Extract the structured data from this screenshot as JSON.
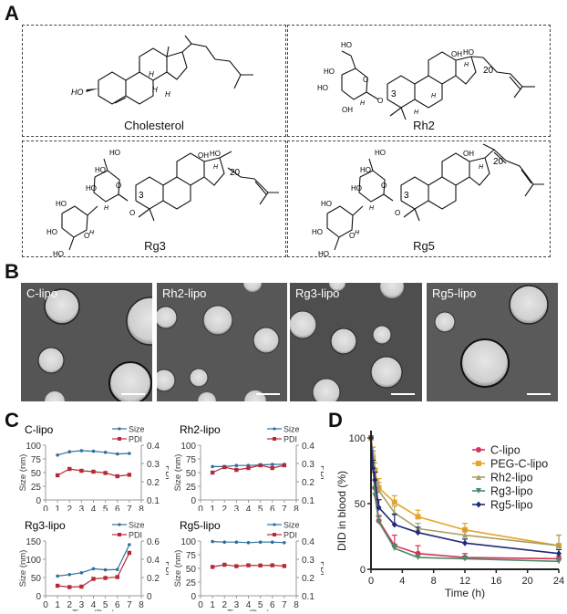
{
  "panels": {
    "A": {
      "label": "A",
      "molecules": [
        {
          "name": "Cholesterol",
          "labels": [
            "HO",
            "H",
            "H",
            "H"
          ]
        },
        {
          "name": "Rh2",
          "labels": [
            "HO",
            "HO",
            "HO",
            "OH",
            "O",
            "O",
            "H",
            "3",
            "OH",
            "HO",
            "20",
            "H",
            "H",
            "H"
          ]
        },
        {
          "name": "Rg3",
          "labels": [
            "HO",
            "HO",
            "HO",
            "HO",
            "HO",
            "HO",
            "O",
            "O",
            "O",
            "H",
            "H",
            "3",
            "OH",
            "HO",
            "20",
            "H"
          ]
        },
        {
          "name": "Rg5",
          "labels": [
            "HO",
            "HO",
            "HO",
            "HO",
            "HO",
            "HO",
            "O",
            "O",
            "O",
            "H",
            "H",
            "3",
            "OH",
            "20",
            "H"
          ]
        }
      ]
    },
    "B": {
      "label": "B",
      "images": [
        {
          "label": "C-lipo"
        },
        {
          "label": "Rh2-lipo"
        },
        {
          "label": "Rg3-lipo"
        },
        {
          "label": "Rg5-lipo"
        }
      ]
    },
    "C": {
      "label": "C"
    },
    "D": {
      "label": "D"
    }
  },
  "chart_data": [
    {
      "type": "line",
      "panel": "C",
      "title": "C-lipo",
      "xlabel": "Time (Day)",
      "ylabel": "Size (nm)",
      "y2label": "PDI",
      "x": [
        1,
        2,
        3,
        4,
        5,
        6,
        7
      ],
      "xticks": [
        "0",
        "1",
        "2",
        "3",
        "4",
        "5",
        "6",
        "7",
        "8"
      ],
      "yticks": [
        "0",
        "25",
        "50",
        "75",
        "100"
      ],
      "y2ticks": [
        "0.1",
        "0.2",
        "0.3",
        "0.4"
      ],
      "ylim": [
        0,
        100
      ],
      "y2lim": [
        0.1,
        0.4
      ],
      "series": [
        {
          "name": "Size",
          "axis": "left",
          "color": "#2e6f9e",
          "values": [
            82,
            88,
            90,
            89,
            87,
            84,
            85
          ]
        },
        {
          "name": "PDI",
          "axis": "right",
          "color": "#b52a35",
          "values": [
            0.235,
            0.27,
            0.26,
            0.255,
            0.248,
            0.23,
            0.238
          ]
        }
      ],
      "legend": [
        "Size",
        "PDI"
      ]
    },
    {
      "type": "line",
      "panel": "C",
      "title": "Rh2-lipo",
      "xlabel": "Time (Day)",
      "ylabel": "Size (nm)",
      "y2label": "PDI",
      "x": [
        1,
        2,
        3,
        4,
        5,
        6,
        7
      ],
      "xticks": [
        "0",
        "1",
        "2",
        "3",
        "4",
        "5",
        "6",
        "7",
        "8"
      ],
      "yticks": [
        "0",
        "25",
        "50",
        "75",
        "100"
      ],
      "y2ticks": [
        "0.1",
        "0.2",
        "0.3",
        "0.4"
      ],
      "ylim": [
        0,
        100
      ],
      "y2lim": [
        0.1,
        0.4
      ],
      "series": [
        {
          "name": "Size",
          "axis": "left",
          "color": "#2e6f9e",
          "values": [
            61,
            61,
            63,
            63,
            64,
            65,
            65
          ]
        },
        {
          "name": "PDI",
          "axis": "right",
          "color": "#b52a35",
          "values": [
            0.25,
            0.28,
            0.265,
            0.275,
            0.29,
            0.275,
            0.29
          ]
        }
      ],
      "legend": [
        "Size",
        "PDI"
      ]
    },
    {
      "type": "line",
      "panel": "C",
      "title": "Rg3-lipo",
      "xlabel": "Time (Day)",
      "ylabel": "Size (nm)",
      "y2label": "PDI",
      "x": [
        1,
        2,
        3,
        4,
        5,
        6,
        7
      ],
      "xticks": [
        "0",
        "1",
        "2",
        "3",
        "4",
        "5",
        "6",
        "7",
        "8"
      ],
      "yticks": [
        "0",
        "50",
        "100",
        "150"
      ],
      "y2ticks": [
        "0",
        "0.2",
        "0.4",
        "0.6"
      ],
      "ylim": [
        0,
        150
      ],
      "y2lim": [
        0,
        0.6
      ],
      "series": [
        {
          "name": "Size",
          "axis": "left",
          "color": "#2e6f9e",
          "values": [
            54,
            58,
            63,
            74,
            71,
            72,
            140
          ]
        },
        {
          "name": "PDI",
          "axis": "right",
          "color": "#b52a35",
          "values": [
            0.11,
            0.095,
            0.1,
            0.185,
            0.195,
            0.205,
            0.47
          ]
        }
      ],
      "legend": [
        "Size",
        "PDI"
      ]
    },
    {
      "type": "line",
      "panel": "C",
      "title": "Rg5-lipo",
      "xlabel": "Time (Day)",
      "ylabel": "Size (nm)",
      "y2label": "PDI",
      "x": [
        1,
        2,
        3,
        4,
        5,
        6,
        7
      ],
      "xticks": [
        "0",
        "1",
        "2",
        "3",
        "4",
        "5",
        "6",
        "7",
        "8"
      ],
      "yticks": [
        "0",
        "25",
        "50",
        "75",
        "100"
      ],
      "y2ticks": [
        "0.1",
        "0.2",
        "0.3",
        "0.4"
      ],
      "ylim": [
        0,
        100
      ],
      "y2lim": [
        0.1,
        0.4
      ],
      "series": [
        {
          "name": "Size",
          "axis": "left",
          "color": "#2e6f9e",
          "values": [
            99,
            98,
            98,
            97,
            98,
            98,
            97
          ]
        },
        {
          "name": "PDI",
          "axis": "right",
          "color": "#b52a35",
          "values": [
            0.258,
            0.27,
            0.262,
            0.267,
            0.266,
            0.267,
            0.263
          ]
        }
      ],
      "legend": [
        "Size",
        "PDI"
      ]
    },
    {
      "type": "line",
      "panel": "D",
      "title": "",
      "xlabel": "Time (h)",
      "ylabel": "DID in blood (%)",
      "x": [
        0,
        0.25,
        0.5,
        1,
        3,
        6,
        12,
        24
      ],
      "xticks": [
        "0",
        "4",
        "8",
        "12",
        "16",
        "20",
        "24"
      ],
      "yticks": [
        "0",
        "50",
        "100"
      ],
      "xlim": [
        0,
        24
      ],
      "ylim": [
        0,
        100
      ],
      "legend_position": "upper right",
      "series": [
        {
          "name": "C-lipo",
          "color": "#d6335a",
          "marker": "circle",
          "values": [
            100,
            85,
            62,
            37,
            18,
            12,
            9,
            8
          ],
          "error": [
            0,
            8,
            6,
            4,
            8,
            6,
            3,
            2
          ]
        },
        {
          "name": "PEG-C-lipo",
          "color": "#e8a32b",
          "marker": "square",
          "values": [
            100,
            85,
            75,
            62,
            51,
            40,
            30,
            18
          ],
          "error": [
            0,
            8,
            6,
            7,
            5,
            5,
            5,
            8
          ]
        },
        {
          "name": "Rh2-lipo",
          "color": "#a6a06a",
          "marker": "triangle-up",
          "values": [
            100,
            80,
            70,
            60,
            43,
            31,
            26,
            18
          ],
          "error": [
            0,
            8,
            7,
            6,
            5,
            4,
            4,
            8
          ]
        },
        {
          "name": "Rg3-lipo",
          "color": "#4f8a68",
          "marker": "triangle-down",
          "values": [
            100,
            80,
            56,
            36,
            16,
            9,
            8,
            6
          ],
          "error": [
            0,
            10,
            6,
            4,
            3,
            2,
            2,
            2
          ]
        },
        {
          "name": "Rg5-lipo",
          "color": "#1f2a7a",
          "marker": "diamond",
          "values": [
            100,
            77,
            68,
            47,
            34,
            28,
            20,
            12
          ],
          "error": [
            0,
            6,
            6,
            6,
            8,
            4,
            3,
            3
          ]
        }
      ]
    }
  ]
}
